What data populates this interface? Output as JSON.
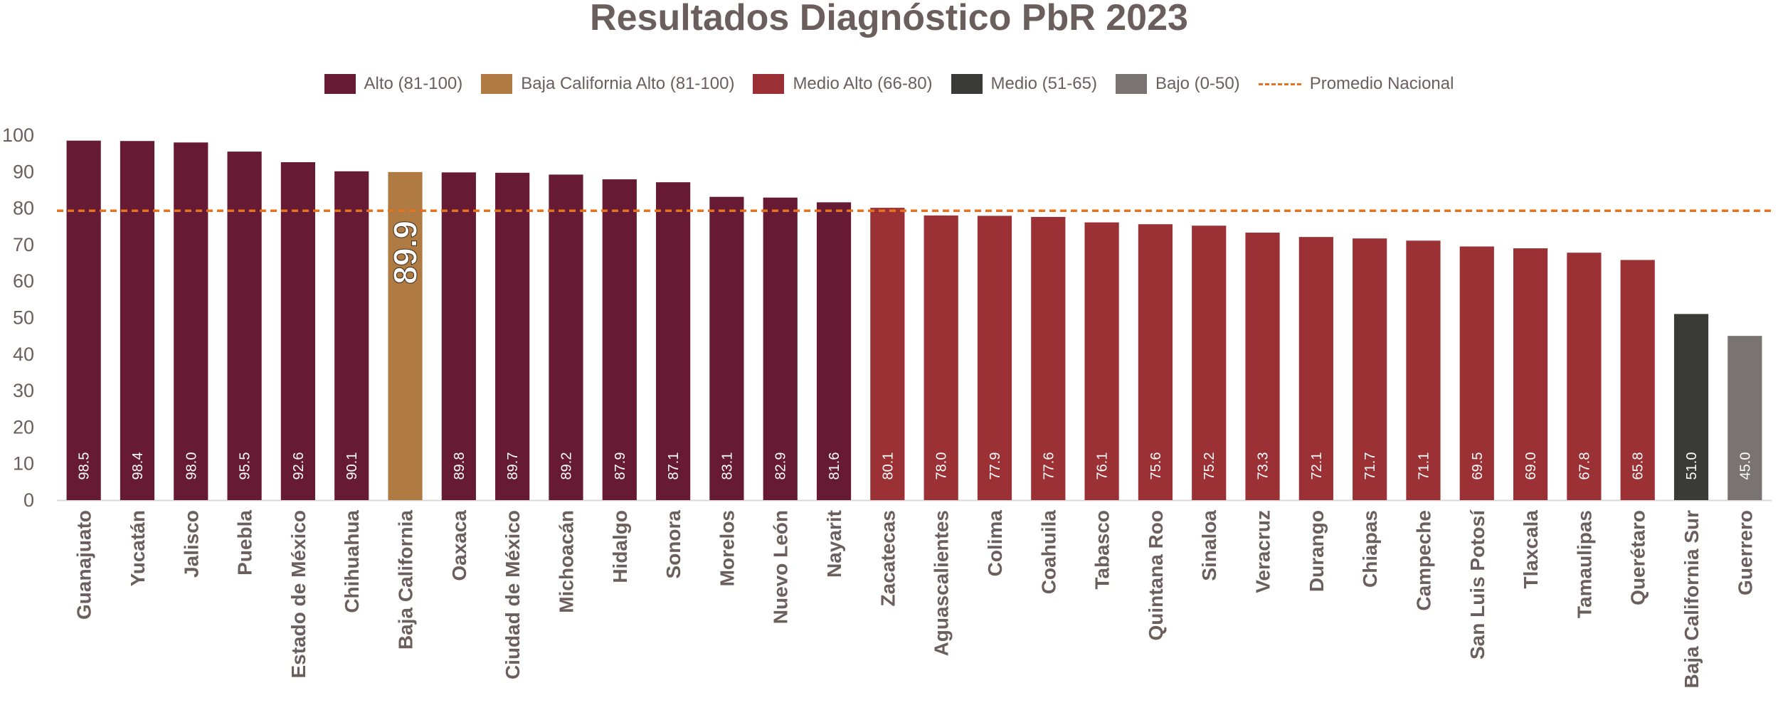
{
  "chart_data": {
    "type": "bar",
    "title": "Resultados Diagnóstico PbR 2023",
    "xlabel": "",
    "ylabel": "",
    "ylim": [
      0,
      100
    ],
    "yticks": [
      0,
      10,
      20,
      30,
      40,
      50,
      60,
      70,
      80,
      90,
      100
    ],
    "grid": false,
    "legend_position": "top-center",
    "reference_line": {
      "name": "Promedio Nacional",
      "value": 79.3,
      "color": "#e37222",
      "style": "dashed"
    },
    "legend": [
      {
        "name": "Alto (81-100)",
        "color": "#661a33",
        "kind": "box"
      },
      {
        "name": "Baja California Alto (81-100)",
        "color": "#b07a43",
        "kind": "box"
      },
      {
        "name": "Medio Alto (66-80)",
        "color": "#9b3035",
        "kind": "box"
      },
      {
        "name": "Medio (51-65)",
        "color": "#3a3a39",
        "kind": "box"
      },
      {
        "name": "Bajo (0-50)",
        "color": "#797472",
        "kind": "box"
      },
      {
        "name": "Promedio Nacional",
        "color": "#e37222",
        "kind": "dashed-line"
      }
    ],
    "categories": [
      "Guanajuato",
      "Yucatán",
      "Jalisco",
      "Puebla",
      "Estado de México",
      "Chihuahua",
      "Baja California",
      "Oaxaca",
      "Ciudad de México",
      "Michoacán",
      "Hidalgo",
      "Sonora",
      "Morelos",
      "Nuevo León",
      "Nayarit",
      "Zacatecas",
      "Aguascalientes",
      "Colima",
      "Coahuila",
      "Tabasco",
      "Quintana Roo",
      "Sinaloa",
      "Veracruz",
      "Durango",
      "Chiapas",
      "Campeche",
      "San Luis Potosí",
      "Tlaxcala",
      "Tamaulipas",
      "Querétaro",
      "Baja California Sur",
      "Guerrero"
    ],
    "values": [
      98.5,
      98.4,
      98.0,
      95.5,
      92.6,
      90.1,
      89.9,
      89.8,
      89.7,
      89.2,
      87.9,
      87.1,
      83.1,
      82.9,
      81.6,
      80.1,
      78.0,
      77.9,
      77.6,
      76.1,
      75.6,
      75.2,
      73.3,
      72.1,
      71.7,
      71.1,
      69.5,
      69.0,
      67.8,
      65.8,
      51.0,
      45.0
    ],
    "value_labels": [
      "98.5",
      "98.4",
      "98.0",
      "95.5",
      "92.6",
      "90.1",
      "",
      "89.8",
      "89.7",
      "89.2",
      "87.9",
      "87.1",
      "83.1",
      "82.9",
      "81.6",
      "80.1",
      "78.0",
      "77.9",
      "77.6",
      "76.1",
      "75.6",
      "75.2",
      "73.3",
      "72.1",
      "71.7",
      "71.1",
      "69.5",
      "69.0",
      "67.8",
      "65.8",
      "51.0",
      "45.0"
    ],
    "groups": [
      "Alto (81-100)",
      "Alto (81-100)",
      "Alto (81-100)",
      "Alto (81-100)",
      "Alto (81-100)",
      "Alto (81-100)",
      "Baja California Alto (81-100)",
      "Alto (81-100)",
      "Alto (81-100)",
      "Alto (81-100)",
      "Alto (81-100)",
      "Alto (81-100)",
      "Alto (81-100)",
      "Alto (81-100)",
      "Alto (81-100)",
      "Medio Alto (66-80)",
      "Medio Alto (66-80)",
      "Medio Alto (66-80)",
      "Medio Alto (66-80)",
      "Medio Alto (66-80)",
      "Medio Alto (66-80)",
      "Medio Alto (66-80)",
      "Medio Alto (66-80)",
      "Medio Alto (66-80)",
      "Medio Alto (66-80)",
      "Medio Alto (66-80)",
      "Medio Alto (66-80)",
      "Medio Alto (66-80)",
      "Medio Alto (66-80)",
      "Medio Alto (66-80)",
      "Medio (51-65)",
      "Bajo (0-50)"
    ],
    "highlight": {
      "category": "Baja California",
      "label": "89.9"
    }
  }
}
